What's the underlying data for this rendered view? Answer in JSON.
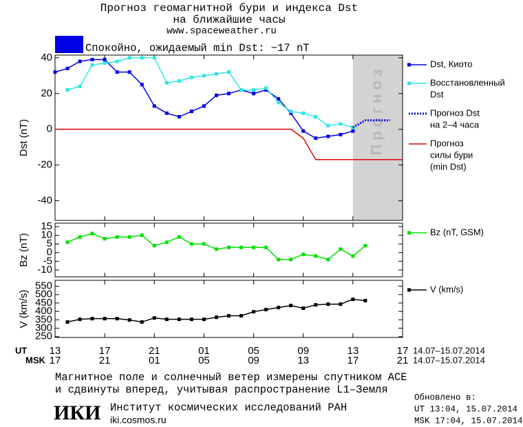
{
  "header": {
    "title_lines": [
      "Прогноз геомагнитной бури и индекса Dst",
      "на ближайшие часы"
    ],
    "url": "www.spaceweather.ru",
    "status": "Спокойно, ожидаемый min Dst: −17 nT",
    "status_color": "#0000e6"
  },
  "chart_data": [
    {
      "type": "line",
      "ylabel": "Dst (nT)",
      "xlim": [
        0,
        28
      ],
      "ylim": [
        -51,
        41.5
      ],
      "xticks": [
        0,
        4,
        8,
        12,
        16,
        20,
        24,
        28
      ],
      "yticks": [
        -40,
        -20,
        0,
        20,
        40
      ],
      "forecast_region": {
        "x": [
          24,
          28
        ],
        "label": "Прогноз",
        "color": "#d3d3d3"
      },
      "series": [
        {
          "name": [
            "Dst, Киото"
          ],
          "color": "#0000e6",
          "marker": true,
          "style": "solid",
          "x": [
            0,
            1,
            2,
            3,
            4,
            5,
            6,
            7,
            8,
            9,
            10,
            11,
            12,
            13,
            14,
            15,
            16,
            17,
            18,
            19,
            20,
            21,
            22,
            23,
            24
          ],
          "values": [
            32,
            34,
            38,
            39,
            39,
            32,
            32,
            25,
            13,
            9,
            7,
            10,
            13,
            19,
            20,
            22,
            20,
            22,
            17,
            9,
            -1,
            -5,
            -4,
            -3,
            -1
          ]
        },
        {
          "name": [
            "Восстановленный",
            "Dst"
          ],
          "color": "#2ee6e6",
          "marker": true,
          "style": "solid",
          "x": [
            1,
            2,
            3,
            4,
            5,
            6,
            7,
            8,
            9,
            10,
            11,
            12,
            13,
            14,
            15,
            16,
            17,
            18,
            19,
            20,
            21,
            22,
            23,
            24
          ],
          "values": [
            22,
            24,
            36,
            37,
            38,
            40,
            40,
            40,
            26,
            27,
            29,
            30,
            31,
            32,
            22,
            22,
            23,
            15,
            10,
            9,
            7,
            2,
            3,
            1
          ]
        },
        {
          "name": [
            "Прогноз Dst",
            "на 2–4 часа"
          ],
          "color": "#0000e6",
          "marker": false,
          "style": "dotted",
          "x": [
            24,
            25,
            26,
            27
          ],
          "values": [
            1,
            5,
            5,
            5
          ]
        },
        {
          "name": [
            "Прогноз",
            "силы бури",
            "(min Dst)"
          ],
          "color": "#e00000",
          "marker": false,
          "style": "solid",
          "x": [
            0,
            19,
            20,
            21,
            28
          ],
          "values": [
            0,
            0,
            -5,
            -17,
            -17
          ]
        }
      ]
    },
    {
      "type": "line",
      "ylabel": "Bz (nT)",
      "xlim": [
        0,
        28
      ],
      "ylim": [
        -14,
        17
      ],
      "xticks": [
        0,
        4,
        8,
        12,
        16,
        20,
        24,
        28
      ],
      "yticks": [
        -10,
        -5,
        0,
        5,
        10,
        15
      ],
      "series": [
        {
          "name": [
            "Bz (nT, GSM)"
          ],
          "color": "#00e000",
          "marker": true,
          "style": "solid",
          "x": [
            1,
            2,
            3,
            4,
            5,
            6,
            7,
            8,
            9,
            10,
            11,
            12,
            13,
            14,
            15,
            16,
            17,
            18,
            19,
            20,
            21,
            22,
            23,
            24,
            25
          ],
          "values": [
            6,
            9,
            11,
            8,
            9,
            9,
            10,
            4,
            6,
            9,
            5,
            5,
            2,
            3,
            3,
            3,
            3,
            -4,
            -4,
            -1,
            -2,
            -4,
            2,
            -2,
            4
          ]
        }
      ]
    },
    {
      "type": "line",
      "ylabel": "V (km/s)",
      "xlim": [
        0,
        28
      ],
      "ylim": [
        245,
        585
      ],
      "xticks": [
        {
          "value": 0,
          "label": "13"
        },
        {
          "value": 4,
          "label": "17"
        },
        {
          "value": 8,
          "label": "21"
        },
        {
          "value": 12,
          "label": "01"
        },
        {
          "value": 16,
          "label": "05"
        },
        {
          "value": 20,
          "label": "09"
        },
        {
          "value": 24,
          "label": "13"
        },
        {
          "value": 28,
          "label": "17"
        }
      ],
      "xticks_msk": [
        {
          "value": 0,
          "label": "17"
        },
        {
          "value": 4,
          "label": "21"
        },
        {
          "value": 8,
          "label": "01"
        },
        {
          "value": 12,
          "label": "05"
        },
        {
          "value": 16,
          "label": "09"
        },
        {
          "value": 20,
          "label": "13"
        },
        {
          "value": 24,
          "label": "17"
        },
        {
          "value": 28,
          "label": "21"
        }
      ],
      "x_rows": {
        "ut_label": "UT",
        "msk_label": "MSK",
        "ut_dates": "14.07–15.07.2014",
        "msk_dates": "14.07–15.07.2014"
      },
      "yticks": [
        250,
        300,
        350,
        400,
        450,
        500,
        550
      ],
      "series": [
        {
          "name": [
            "V (km/s)"
          ],
          "color": "#000000",
          "marker": true,
          "style": "solid",
          "x": [
            1,
            2,
            3,
            4,
            5,
            6,
            7,
            8,
            9,
            10,
            11,
            12,
            13,
            14,
            15,
            16,
            17,
            18,
            19,
            20,
            21,
            22,
            23,
            24,
            25
          ],
          "values": [
            337,
            353,
            357,
            357,
            357,
            349,
            337,
            361,
            353,
            353,
            353,
            353,
            365,
            374,
            374,
            398,
            411,
            423,
            435,
            419,
            439,
            443,
            443,
            472,
            464
          ]
        }
      ]
    }
  ],
  "footer": {
    "note_lines": [
      "Магнитное поле и солнечный ветер измерены спутником ACE",
      "и сдвинуты вперед, учитывая распространение L1–Земля"
    ],
    "logo": "ИКИ",
    "institute": "Институт космических исследований РАН",
    "site": "iki.cosmos.ru",
    "updated": [
      "Обновлено в:",
      "UT  13:04, 15.07.2014",
      "MSK 17:04, 15.07.2014"
    ]
  }
}
